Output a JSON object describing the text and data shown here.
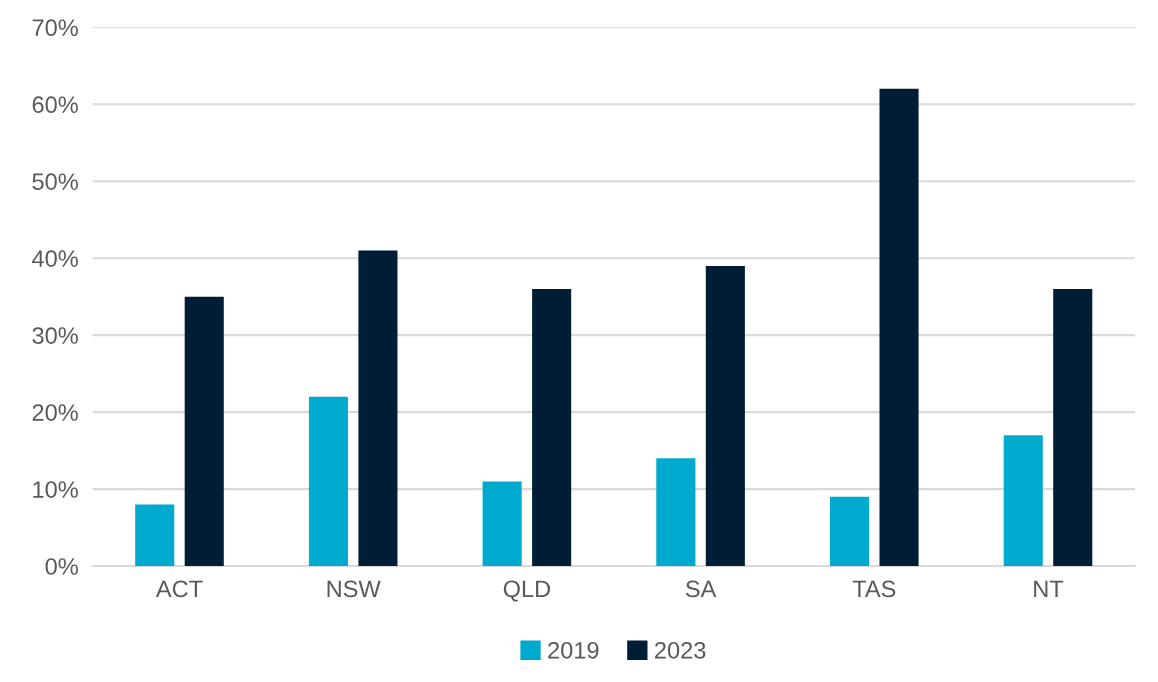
{
  "chart_data": {
    "type": "bar",
    "categories": [
      "ACT",
      "NSW",
      "QLD",
      "SA",
      "TAS",
      "NT"
    ],
    "series": [
      {
        "name": "2019",
        "color": "#00a9ce",
        "values": [
          8,
          22,
          11,
          14,
          9,
          17
        ]
      },
      {
        "name": "2023",
        "color": "#001d36",
        "values": [
          35,
          41,
          36,
          39,
          62,
          36
        ]
      }
    ],
    "ylim": [
      0,
      70
    ],
    "yticks": [
      {
        "value": 0,
        "label": "0%"
      },
      {
        "value": 10,
        "label": "10%"
      },
      {
        "value": 20,
        "label": "20%"
      },
      {
        "value": 30,
        "label": "30%"
      },
      {
        "value": 40,
        "label": "40%"
      },
      {
        "value": 50,
        "label": "50%"
      },
      {
        "value": 60,
        "label": "60%"
      },
      {
        "value": 70,
        "label": "70%"
      }
    ],
    "grid": "y",
    "legend": "bottom"
  }
}
